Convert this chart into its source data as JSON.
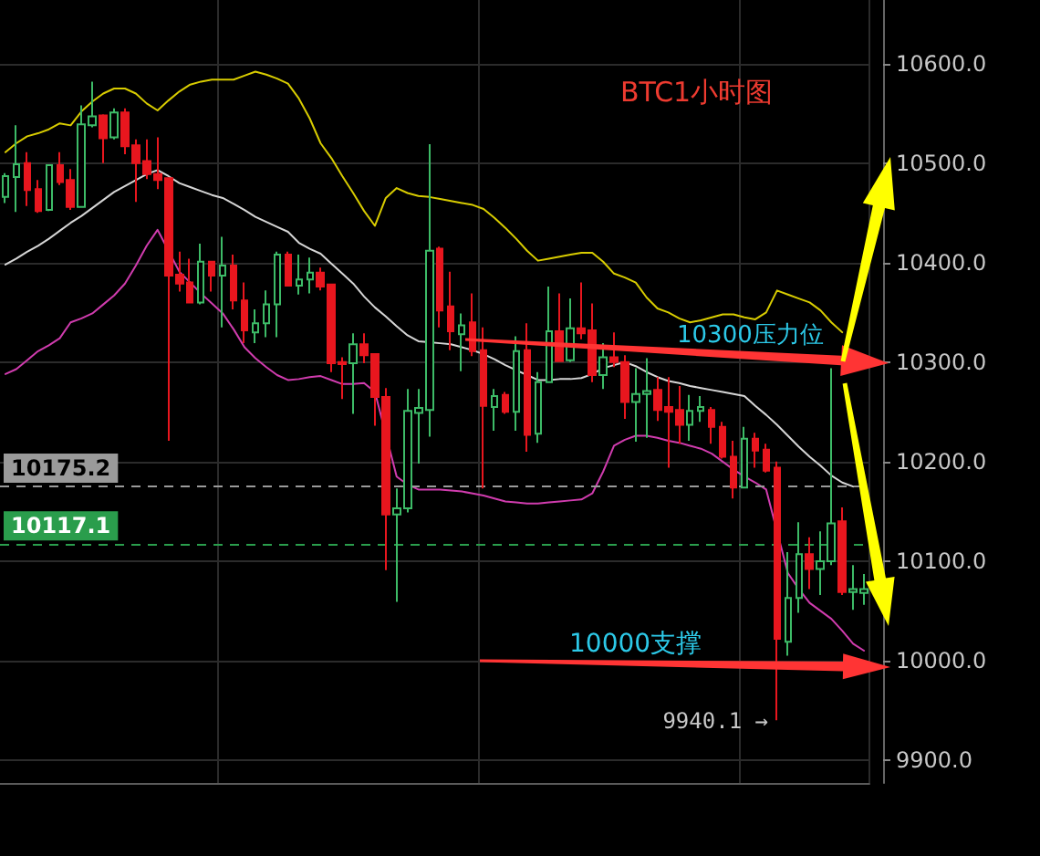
{
  "chart_data": {
    "type": "candlestick",
    "title": "BTC1小时图",
    "categories": [
      null,
      null,
      null,
      null,
      null,
      null,
      null,
      null,
      null,
      null,
      null,
      null,
      null,
      null,
      null,
      null,
      null,
      null,
      null,
      null,
      null,
      null,
      null,
      null,
      null,
      null,
      null,
      null,
      null,
      null,
      null,
      null,
      null,
      null,
      null,
      null,
      null,
      null,
      null,
      null,
      null,
      null,
      null,
      null,
      null,
      null,
      null,
      null,
      null,
      null,
      null,
      null,
      null,
      null,
      null,
      null,
      null,
      null,
      null,
      null,
      null,
      null,
      null,
      null,
      null,
      null,
      null,
      null,
      null,
      null,
      null,
      null,
      null,
      null,
      null,
      null,
      null,
      null,
      null,
      null
    ],
    "series": [
      {
        "ohlc": [
          [
            10466,
            10490,
            10460,
            10487
          ],
          [
            10486,
            10538,
            10451,
            10499
          ],
          [
            10500,
            10511,
            10457,
            10473
          ],
          [
            10474,
            10483,
            10450,
            10452
          ],
          [
            10453,
            10499,
            10452,
            10498
          ],
          [
            10498,
            10511,
            10478,
            10481
          ],
          [
            10483,
            10494,
            10453,
            10456
          ],
          [
            10456,
            10558,
            10456,
            10539
          ],
          [
            10538,
            10582,
            10536,
            10547
          ],
          [
            10548,
            10549,
            10500,
            10525
          ],
          [
            10526,
            10555,
            10524,
            10551
          ],
          [
            10551,
            10555,
            10509,
            10517
          ],
          [
            10518,
            10524,
            10461,
            10500
          ],
          [
            10502,
            10524,
            10484,
            10489
          ],
          [
            10489,
            10526,
            10474,
            10483
          ],
          [
            10485,
            10485,
            10221,
            10387
          ],
          [
            10388,
            10411,
            10371,
            10379
          ],
          [
            10380,
            10404,
            10359,
            10360
          ],
          [
            10360,
            10419,
            10358,
            10401
          ],
          [
            10401,
            10401,
            10371,
            10387
          ],
          [
            10387,
            10426,
            10335,
            10397
          ],
          [
            10397,
            10408,
            10353,
            10362
          ],
          [
            10362,
            10380,
            10319,
            10332
          ],
          [
            10330,
            10353,
            10319,
            10339
          ],
          [
            10339,
            10372,
            10325,
            10358
          ],
          [
            10358,
            10411,
            10325,
            10408
          ],
          [
            10408,
            10411,
            10376,
            10377
          ],
          [
            10377,
            10408,
            10368,
            10383
          ],
          [
            10383,
            10405,
            10369,
            10390
          ],
          [
            10390,
            10395,
            10372,
            10376
          ],
          [
            10378,
            10378,
            10290,
            10299
          ],
          [
            10300,
            10305,
            10263,
            10298
          ],
          [
            10299,
            10329,
            10248,
            10318
          ],
          [
            10318,
            10329,
            10299,
            10307
          ],
          [
            10308,
            10308,
            10236,
            10265
          ],
          [
            10265,
            10274,
            10091,
            10147
          ],
          [
            10147,
            10173,
            10059,
            10153
          ],
          [
            10153,
            10273,
            10149,
            10251
          ],
          [
            10249,
            10273,
            10198,
            10254
          ],
          [
            10252,
            10519,
            10225,
            10412
          ],
          [
            10414,
            10416,
            10335,
            10352
          ],
          [
            10356,
            10391,
            10312,
            10331
          ],
          [
            10328,
            10349,
            10291,
            10337
          ],
          [
            10340,
            10369,
            10306,
            10311
          ],
          [
            10312,
            10335,
            10173,
            10256
          ],
          [
            10255,
            10273,
            10231,
            10266
          ],
          [
            10267,
            10270,
            10248,
            10250
          ],
          [
            10250,
            10326,
            10231,
            10311
          ],
          [
            10312,
            10339,
            10210,
            10227
          ],
          [
            10228,
            10290,
            10219,
            10280
          ],
          [
            10280,
            10376,
            10280,
            10331
          ],
          [
            10331,
            10369,
            10301,
            10301
          ],
          [
            10302,
            10364,
            10300,
            10334
          ],
          [
            10334,
            10380,
            10323,
            10329
          ],
          [
            10332,
            10359,
            10280,
            10287
          ],
          [
            10287,
            10319,
            10273,
            10305
          ],
          [
            10305,
            10330,
            10295,
            10300
          ],
          [
            10300,
            10307,
            10243,
            10260
          ],
          [
            10260,
            10294,
            10220,
            10268
          ],
          [
            10268,
            10304,
            10224,
            10271
          ],
          [
            10272,
            10285,
            10241,
            10252
          ],
          [
            10255,
            10285,
            10194,
            10250
          ],
          [
            10252,
            10276,
            10218,
            10237
          ],
          [
            10237,
            10267,
            10221,
            10251
          ],
          [
            10251,
            10266,
            10240,
            10255
          ],
          [
            10252,
            10255,
            10218,
            10235
          ],
          [
            10235,
            10240,
            10203,
            10205
          ],
          [
            10205,
            10221,
            10163,
            10174
          ],
          [
            10174,
            10235,
            10173,
            10223
          ],
          [
            10223,
            10229,
            10194,
            10211
          ],
          [
            10212,
            10218,
            10189,
            10191
          ],
          [
            10194,
            10200,
            9940.1,
            10022
          ],
          [
            10019,
            10109,
            10005,
            10063
          ],
          [
            10063,
            10139,
            10048,
            10107
          ],
          [
            10107,
            10124,
            10072,
            10092
          ],
          [
            10092,
            10130,
            10066,
            10100
          ],
          [
            10100,
            10294,
            10096,
            10138
          ],
          [
            10140,
            10154,
            10066,
            10069
          ],
          [
            10069,
            10096,
            10051,
            10072
          ],
          [
            10068,
            10087,
            10056,
            10072
          ]
        ],
        "colors": [
          "#3dbb67",
          "#3dbb67",
          "#e8161e",
          "#e8161e",
          "#3dbb67",
          "#e8161e",
          "#e8161e",
          "#3dbb67",
          "#3dbb67",
          "#e8161e",
          "#3dbb67",
          "#e8161e",
          "#e8161e",
          "#e8161e",
          "#e8161e",
          "#e8161e",
          "#e8161e",
          "#e8161e",
          "#3dbb67",
          "#e8161e",
          "#3dbb67",
          "#e8161e",
          "#e8161e",
          "#3dbb67",
          "#3dbb67",
          "#3dbb67",
          "#e8161e",
          "#3dbb67",
          "#3dbb67",
          "#e8161e",
          "#e8161e",
          "#e8161e",
          "#3dbb67",
          "#e8161e",
          "#e8161e",
          "#e8161e",
          "#3dbb67",
          "#3dbb67",
          "#3dbb67",
          "#3dbb67",
          "#e8161e",
          "#e8161e",
          "#3dbb67",
          "#e8161e",
          "#e8161e",
          "#3dbb67",
          "#e8161e",
          "#3dbb67",
          "#e8161e",
          "#3dbb67",
          "#3dbb67",
          "#e8161e",
          "#3dbb67",
          "#e8161e",
          "#e8161e",
          "#3dbb67",
          "#e8161e",
          "#e8161e",
          "#3dbb67",
          "#3dbb67",
          "#e8161e",
          "#e8161e",
          "#e8161e",
          "#3dbb67",
          "#3dbb67",
          "#e8161e",
          "#e8161e",
          "#e8161e",
          "#3dbb67",
          "#e8161e",
          "#e8161e",
          "#e8161e",
          "#3dbb67",
          "#3dbb67",
          "#e8161e",
          "#3dbb67",
          "#3dbb67",
          "#e8161e",
          "#3dbb67",
          "#3dbb67"
        ]
      },
      {
        "type": "line",
        "color": "#d8cc00",
        "values": [
          10511,
          10520,
          10527,
          10530,
          10534,
          10540,
          10538,
          10552,
          10562,
          10570,
          10575,
          10575,
          10570,
          10560,
          10553,
          10563,
          10572,
          10579,
          10582,
          10584,
          10584,
          10584,
          10588,
          10592,
          10589,
          10585,
          10580,
          10565,
          10545,
          10520,
          10505,
          10487,
          10470,
          10452,
          10437,
          10465,
          10475,
          10470,
          10467,
          10466,
          10464,
          10462,
          10460,
          10458,
          10454,
          10445,
          10435,
          10424,
          10412,
          10402,
          10404,
          10406,
          10408,
          10410,
          10410,
          10401,
          10389,
          10385,
          10380,
          10365,
          10354,
          10350,
          10344,
          10340,
          10342,
          10345,
          10348,
          10348,
          10345,
          10343,
          10350,
          10372,
          10368,
          10364,
          10360,
          10352,
          10340,
          10330,
          null,
          null
        ]
      },
      {
        "type": "line",
        "color": "#d6d6d6",
        "values": [
          10398,
          10404,
          10411,
          10417,
          10424,
          10432,
          10440,
          10447,
          10455,
          10463,
          10471,
          10477,
          10483,
          10489,
          10493,
          10487,
          10480,
          10476,
          10472,
          10468,
          10465,
          10459,
          10453,
          10446,
          10441,
          10436,
          10431,
          10420,
          10414,
          10409,
          10399,
          10389,
          10379,
          10366,
          10355,
          10346,
          10336,
          10327,
          10321,
          10320,
          10319,
          10318,
          10315,
          10312,
          10308,
          10303,
          10297,
          10292,
          10287,
          10282,
          10282,
          10283,
          10283,
          10284,
          10288,
          10294,
          10297,
          10300,
          10296,
          10290,
          10285,
          10281,
          10279,
          10276,
          10274,
          10272,
          10270,
          10268,
          10266,
          10256,
          10247,
          10237,
          10226,
          10215,
          10205,
          10196,
          10186,
          10179,
          10175,
          null
        ]
      },
      {
        "type": "line",
        "color": "#d03cae",
        "values": [
          10288,
          10293,
          10302,
          10311,
          10317,
          10324,
          10340,
          10344,
          10349,
          10358,
          10367,
          10379,
          10397,
          10417,
          10433,
          null,
          10391,
          10380,
          10369,
          10359,
          10349,
          10333,
          10315,
          10304,
          10295,
          10287,
          10282,
          10283,
          10285,
          10286,
          10282,
          10278,
          10278,
          10279,
          10270,
          null,
          10185,
          10177,
          10172,
          10172,
          10172,
          10171,
          10170,
          10168,
          10166,
          10163,
          10160,
          10159,
          10158,
          10158,
          10159,
          10160,
          10161,
          10162,
          10168,
          10190,
          10216,
          10222,
          10226,
          10226,
          10224,
          10221,
          10219,
          10216,
          10213,
          10208,
          10200,
          10192,
          10185,
          10179,
          10172,
          null,
          10088,
          10072,
          10058,
          10050,
          10042,
          10030,
          10017,
          10010
        ]
      }
    ],
    "ylim": [
      9877,
      10664
    ],
    "yticks": [
      {
        "value": 9900,
        "label": "9900.0"
      },
      {
        "value": 10000,
        "label": "10000.0"
      },
      {
        "value": 10100,
        "label": "10100.0"
      },
      {
        "value": 10200,
        "label": "10200.0"
      },
      {
        "value": 10300,
        "label": "10300.0"
      },
      {
        "value": 10400,
        "label": "10400.0"
      },
      {
        "value": 10500,
        "label": "10500.0"
      },
      {
        "value": 10600,
        "label": "10600.0"
      }
    ],
    "ref_lines": [
      {
        "axis": "y",
        "value": 10175.2,
        "label": "10175.2",
        "color": "#9a9a9a",
        "line_style": "dashed"
      },
      {
        "axis": "y",
        "value": 10117.1,
        "label": "10117.1",
        "color": "#2a9d4c",
        "line_style": "dashed"
      }
    ],
    "annotations": [
      "10300压力位",
      "10000支撑",
      "9940.1 →"
    ],
    "grid": true,
    "tick_labels": "y"
  }
}
